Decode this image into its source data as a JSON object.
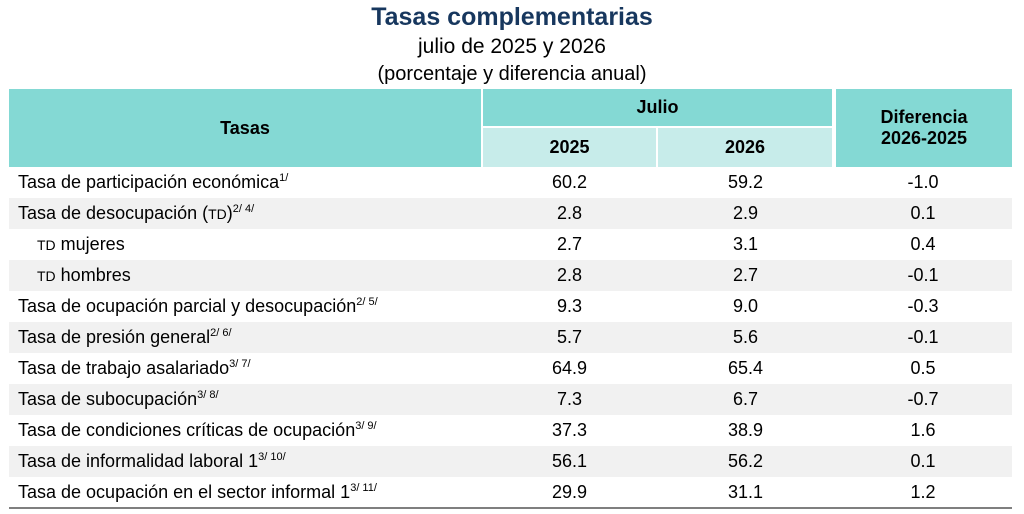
{
  "title": "Tasas complementarias",
  "subtitle": "julio de 2025 y 2026",
  "subtitle2": "(porcentaje y diferencia anual)",
  "header": {
    "col_tasas": "Tasas",
    "group_label": "Julio",
    "year1": "2025",
    "year2": "2026",
    "diff_line1": "Diferencia",
    "diff_line2": "2026-2025"
  },
  "rows": [
    {
      "label": "Tasa de participación económica",
      "sup": "1/",
      "v2025": "60.2",
      "v2026": "59.2",
      "diff": "-1.0"
    },
    {
      "label_pre": "Tasa de desocupación (",
      "label_sc": "TD",
      "label_post": ")",
      "sup": "2/ 4/",
      "v2025": "2.8",
      "v2026": "2.9",
      "diff": "0.1"
    },
    {
      "label_sc": "TD",
      "label_post": " mujeres",
      "v2025": "2.7",
      "v2026": "3.1",
      "diff": "0.4"
    },
    {
      "label_sc": "TD",
      "label_post": " hombres",
      "v2025": "2.8",
      "v2026": "2.7",
      "diff": "-0.1"
    },
    {
      "label": "Tasa de ocupación parcial y desocupación",
      "sup": "2/ 5/",
      "v2025": "9.3",
      "v2026": "9.0",
      "diff": "-0.3"
    },
    {
      "label": "Tasa de presión general",
      "sup": "2/ 6/",
      "v2025": "5.7",
      "v2026": "5.6",
      "diff": "-0.1"
    },
    {
      "label": "Tasa de trabajo asalariado",
      "sup": "3/ 7/",
      "v2025": "64.9",
      "v2026": "65.4",
      "diff": "0.5"
    },
    {
      "label": "Tasa de subocupación",
      "sup": "3/ 8/",
      "v2025": "7.3",
      "v2026": "6.7",
      "diff": "-0.7"
    },
    {
      "label": "Tasa de condiciones críticas de ocupación",
      "sup": "3/ 9/",
      "v2025": "37.3",
      "v2026": "38.9",
      "diff": "1.6"
    },
    {
      "label": "Tasa de informalidad laboral 1",
      "sup": "3/ 10/",
      "v2025": "56.1",
      "v2026": "56.2",
      "diff": "0.1"
    },
    {
      "label": "Tasa de ocupación en el sector informal 1",
      "sup": "3/ 11/",
      "v2025": "29.9",
      "v2026": "31.1",
      "diff": "1.2"
    }
  ],
  "colors": {
    "title": "#17375e",
    "header_teal": "#84d9d4",
    "header_light": "#c7ecea",
    "row_alt": "#f1f1f1"
  }
}
